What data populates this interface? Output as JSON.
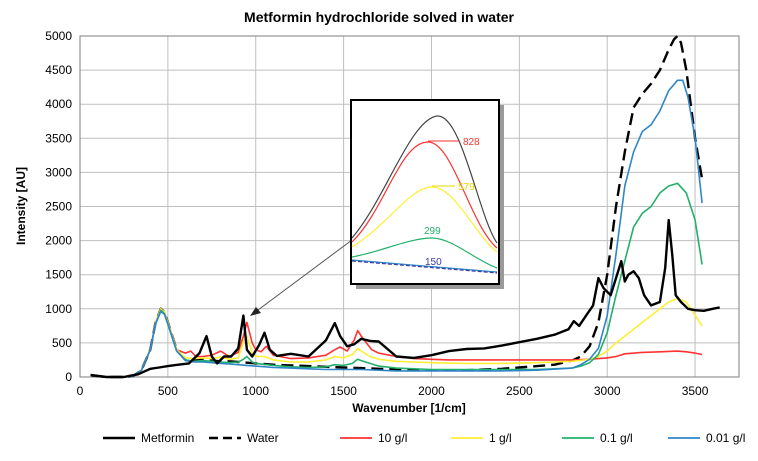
{
  "chart_data": {
    "type": "line",
    "title": "Metformin hydrochloride solved in water",
    "xlabel": "Wavenumber [1/cm]",
    "ylabel": "Intensity [AU]",
    "xlim": [
      0,
      3750
    ],
    "ylim": [
      0,
      5000
    ],
    "xticks": [
      0,
      500,
      1000,
      1500,
      2000,
      2500,
      3000,
      3500
    ],
    "yticks": [
      0,
      500,
      1000,
      1500,
      2000,
      2500,
      3000,
      3500,
      4000,
      4500,
      5000
    ],
    "xtick_labels": [
      "0",
      "500",
      "1000",
      "1500",
      "2000",
      "2500",
      "3000",
      "3500"
    ],
    "ytick_labels": [
      "0",
      "500",
      "1000",
      "1500",
      "2000",
      "2500",
      "3000",
      "3500",
      "4000",
      "4500",
      "5000"
    ],
    "grid": true,
    "legend_position": "bottom",
    "series": [
      {
        "name": "Metformin",
        "color": "#000000",
        "dash": "solid",
        "x": [
          60,
          150,
          250,
          330,
          400,
          450,
          500,
          560,
          620,
          680,
          720,
          750,
          780,
          820,
          860,
          900,
          930,
          950,
          980,
          1020,
          1050,
          1080,
          1120,
          1200,
          1300,
          1400,
          1450,
          1480,
          1520,
          1560,
          1600,
          1650,
          1700,
          1800,
          1900,
          2000,
          2100,
          2200,
          2300,
          2400,
          2500,
          2600,
          2700,
          2780,
          2810,
          2840,
          2880,
          2920,
          2950,
          2980,
          3020,
          3050,
          3080,
          3100,
          3120,
          3150,
          3180,
          3210,
          3250,
          3300,
          3330,
          3350,
          3370,
          3390,
          3420,
          3460,
          3500,
          3550,
          3600,
          3640
        ],
        "values": [
          30,
          0,
          -20,
          40,
          120,
          140,
          160,
          180,
          200,
          350,
          600,
          300,
          200,
          300,
          300,
          420,
          900,
          400,
          300,
          470,
          650,
          400,
          310,
          340,
          300,
          540,
          790,
          600,
          450,
          480,
          560,
          530,
          520,
          300,
          280,
          320,
          380,
          410,
          420,
          460,
          510,
          560,
          620,
          700,
          820,
          750,
          900,
          1050,
          1450,
          1300,
          1200,
          1450,
          1700,
          1400,
          1500,
          1550,
          1450,
          1200,
          1050,
          1100,
          1600,
          2300,
          1800,
          1200,
          1100,
          1000,
          980,
          970,
          1000,
          1020
        ]
      },
      {
        "name": "Water",
        "color": "#000000",
        "dash": "dashed",
        "x": [
          70,
          150,
          250,
          300,
          350,
          400,
          430,
          460,
          480,
          500,
          550,
          600,
          650,
          700,
          750,
          800,
          850,
          900,
          950,
          1000,
          1100,
          1200,
          1300,
          1400,
          1500,
          1600,
          1700,
          1800,
          1900,
          2000,
          2100,
          2200,
          2300,
          2400,
          2500,
          2600,
          2700,
          2800,
          2850,
          2900,
          2950,
          3000,
          3050,
          3100,
          3150,
          3200,
          3250,
          3300,
          3350,
          3380,
          3400,
          3420,
          3450,
          3480,
          3500,
          3540
        ],
        "values": [
          20,
          0,
          0,
          10,
          100,
          400,
          800,
          1000,
          950,
          800,
          400,
          250,
          250,
          260,
          240,
          230,
          230,
          220,
          210,
          200,
          180,
          170,
          160,
          150,
          140,
          130,
          120,
          110,
          100,
          100,
          100,
          100,
          110,
          120,
          140,
          160,
          180,
          240,
          300,
          450,
          800,
          1500,
          2500,
          3300,
          3950,
          4150,
          4300,
          4500,
          4800,
          4950,
          5000,
          4900,
          4500,
          3900,
          3500,
          2900
        ]
      },
      {
        "name": "10 g/l",
        "color": "#ff3333",
        "dash": "solid",
        "x": [
          70,
          150,
          250,
          300,
          350,
          400,
          430,
          460,
          480,
          500,
          550,
          600,
          630,
          660,
          700,
          750,
          800,
          850,
          900,
          930,
          950,
          980,
          1000,
          1030,
          1060,
          1100,
          1200,
          1300,
          1400,
          1450,
          1480,
          1520,
          1560,
          1580,
          1600,
          1630,
          1660,
          1700,
          1800,
          1900,
          2000,
          2100,
          2200,
          2300,
          2400,
          2500,
          2600,
          2700,
          2800,
          2900,
          2950,
          3000,
          3050,
          3100,
          3200,
          3300,
          3400,
          3450,
          3500,
          3540
        ],
        "values": [
          20,
          0,
          0,
          10,
          100,
          400,
          800,
          1000,
          950,
          800,
          400,
          350,
          380,
          300,
          300,
          320,
          380,
          300,
          360,
          600,
          800,
          500,
          400,
          370,
          450,
          320,
          270,
          280,
          320,
          400,
          440,
          380,
          540,
          680,
          600,
          500,
          400,
          350,
          300,
          270,
          260,
          250,
          250,
          250,
          250,
          250,
          250,
          250,
          250,
          260,
          270,
          280,
          300,
          340,
          360,
          370,
          380,
          370,
          350,
          330
        ]
      },
      {
        "name": "1 g/l",
        "color": "#ffee33",
        "dash": "solid",
        "x": [
          70,
          150,
          250,
          300,
          350,
          400,
          430,
          460,
          480,
          500,
          550,
          600,
          650,
          700,
          750,
          800,
          850,
          900,
          930,
          950,
          980,
          1000,
          1050,
          1100,
          1200,
          1300,
          1400,
          1450,
          1500,
          1550,
          1580,
          1600,
          1650,
          1700,
          1800,
          1900,
          2000,
          2200,
          2400,
          2600,
          2800,
          2900,
          2950,
          3000,
          3050,
          3100,
          3150,
          3200,
          3250,
          3300,
          3350,
          3400,
          3450,
          3500,
          3540
        ],
        "values": [
          20,
          0,
          0,
          10,
          100,
          400,
          800,
          1000,
          950,
          800,
          400,
          280,
          270,
          280,
          270,
          290,
          260,
          280,
          520,
          600,
          350,
          300,
          300,
          250,
          220,
          220,
          250,
          300,
          280,
          330,
          420,
          380,
          300,
          260,
          230,
          220,
          210,
          200,
          200,
          210,
          230,
          260,
          300,
          380,
          500,
          600,
          700,
          800,
          900,
          1000,
          1100,
          1150,
          1100,
          900,
          750
        ]
      },
      {
        "name": "0.1 g/l",
        "color": "#22b06a",
        "dash": "solid",
        "x": [
          70,
          150,
          250,
          300,
          350,
          400,
          430,
          460,
          480,
          500,
          550,
          600,
          650,
          700,
          750,
          800,
          850,
          900,
          930,
          950,
          980,
          1000,
          1100,
          1200,
          1300,
          1400,
          1450,
          1500,
          1550,
          1580,
          1600,
          1650,
          1700,
          1800,
          1900,
          2000,
          2200,
          2400,
          2600,
          2800,
          2850,
          2900,
          2950,
          3000,
          3050,
          3100,
          3150,
          3200,
          3250,
          3300,
          3350,
          3400,
          3450,
          3500,
          3540
        ],
        "values": [
          20,
          0,
          0,
          10,
          100,
          400,
          780,
          980,
          930,
          780,
          380,
          250,
          230,
          240,
          230,
          220,
          210,
          220,
          260,
          300,
          220,
          200,
          170,
          150,
          140,
          150,
          180,
          170,
          200,
          260,
          240,
          200,
          160,
          130,
          120,
          110,
          110,
          110,
          110,
          130,
          160,
          210,
          330,
          650,
          1200,
          1700,
          2200,
          2400,
          2500,
          2700,
          2800,
          2840,
          2700,
          2300,
          1650
        ]
      },
      {
        "name": "0.01 g/l",
        "color": "#2f86c8",
        "dash": "solid",
        "x": [
          70,
          150,
          250,
          300,
          350,
          400,
          430,
          460,
          480,
          500,
          550,
          600,
          650,
          700,
          750,
          800,
          850,
          900,
          950,
          1000,
          1100,
          1200,
          1300,
          1400,
          1500,
          1600,
          1700,
          1800,
          1900,
          2000,
          2200,
          2400,
          2600,
          2800,
          2850,
          2900,
          2950,
          3000,
          3050,
          3100,
          3150,
          3200,
          3250,
          3300,
          3350,
          3400,
          3430,
          3460,
          3500,
          3540
        ],
        "values": [
          20,
          0,
          0,
          10,
          100,
          400,
          780,
          960,
          920,
          770,
          380,
          240,
          220,
          220,
          210,
          200,
          190,
          180,
          170,
          160,
          140,
          130,
          120,
          110,
          110,
          110,
          100,
          90,
          90,
          90,
          90,
          90,
          100,
          130,
          180,
          260,
          420,
          900,
          1800,
          2800,
          3300,
          3600,
          3700,
          3900,
          4200,
          4350,
          4350,
          4100,
          3500,
          2550
        ]
      }
    ],
    "inset": {
      "labels": [
        "828",
        "579",
        "299",
        "150"
      ],
      "label_colors": [
        "#ff3333",
        "#e6d800",
        "#22b06a",
        "#3a3aa8"
      ]
    }
  }
}
